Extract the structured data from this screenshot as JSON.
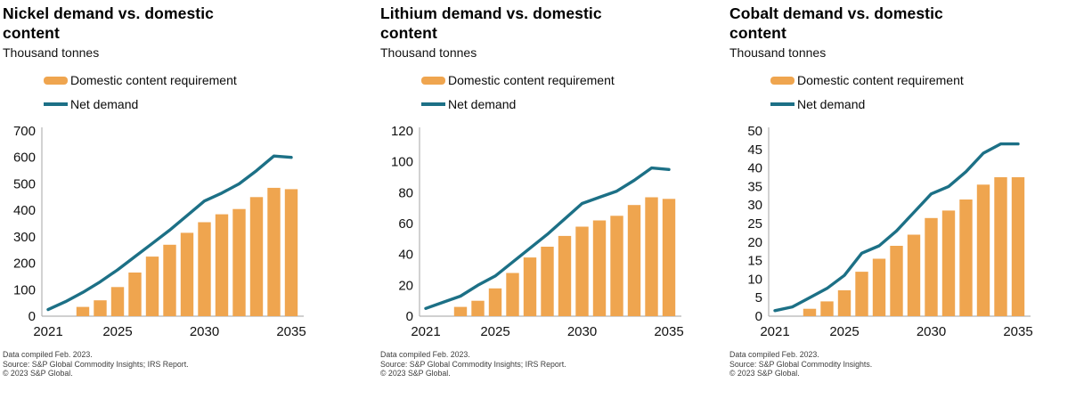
{
  "page": {
    "background": "#ffffff",
    "axis_color": "#b3b3b3",
    "bar_color": "#EFA54F",
    "line_color": "#1C7086"
  },
  "chart_data": [
    {
      "type": "bar+line",
      "title": "Nickel demand vs. domestic content",
      "subtitle": "Thousand tonnes",
      "x_range": [
        2021,
        2035
      ],
      "xticks": [
        2021,
        2025,
        2030,
        2035
      ],
      "ylim": [
        0,
        700
      ],
      "ytick_step": 100,
      "grid": false,
      "legend_position": "top-left",
      "series": [
        {
          "name": "Domestic content requirement",
          "type": "bar",
          "color": "#EFA54F",
          "x_start": 2023,
          "values": [
            35,
            60,
            110,
            165,
            225,
            270,
            315,
            355,
            385,
            405,
            450,
            485,
            480
          ]
        },
        {
          "name": "Net demand",
          "type": "line",
          "color": "#1C7086",
          "x_start": 2021,
          "values": [
            25,
            55,
            90,
            130,
            175,
            225,
            275,
            325,
            380,
            435,
            465,
            500,
            550,
            605,
            600
          ]
        }
      ],
      "footer": [
        "Data compiled Feb. 2023.",
        "Source: S&P Global Commodity Insights; IRS Report.",
        "© 2023 S&P Global."
      ]
    },
    {
      "type": "bar+line",
      "title": "Lithium demand vs. domestic content",
      "subtitle": "Thousand tonnes",
      "x_range": [
        2021,
        2035
      ],
      "xticks": [
        2021,
        2025,
        2030,
        2035
      ],
      "ylim": [
        0,
        120
      ],
      "ytick_step": 20,
      "grid": false,
      "legend_position": "top-left",
      "series": [
        {
          "name": "Domestic content requirement",
          "type": "bar",
          "color": "#EFA54F",
          "x_start": 2023,
          "values": [
            6,
            10,
            18,
            28,
            38,
            45,
            52,
            58,
            62,
            65,
            72,
            77,
            76
          ]
        },
        {
          "name": "Net demand",
          "type": "line",
          "color": "#1C7086",
          "x_start": 2021,
          "values": [
            5,
            9,
            13,
            20,
            26,
            35,
            44,
            53,
            63,
            73,
            77,
            81,
            88,
            96,
            95
          ]
        }
      ],
      "footer": [
        "Data compiled Feb. 2023.",
        "Source: S&P Global Commodity Insights; IRS Report.",
        "© 2023 S&P Global."
      ]
    },
    {
      "type": "bar+line",
      "title": "Cobalt demand vs. domestic content",
      "subtitle": "Thousand tonnes",
      "x_range": [
        2021,
        2035
      ],
      "xticks": [
        2021,
        2025,
        2030,
        2035
      ],
      "ylim": [
        0,
        50
      ],
      "ytick_step": 5,
      "grid": false,
      "legend_position": "top-left",
      "series": [
        {
          "name": "Domestic content requirement",
          "type": "bar",
          "color": "#EFA54F",
          "x_start": 2023,
          "values": [
            2,
            4,
            7,
            12,
            15.5,
            19,
            22,
            26.5,
            28.5,
            31.5,
            35.5,
            37.5,
            37.5
          ]
        },
        {
          "name": "Net demand",
          "type": "line",
          "color": "#1C7086",
          "x_start": 2021,
          "values": [
            1.5,
            2.5,
            5,
            7.5,
            11,
            17,
            19,
            23,
            28,
            33,
            35,
            39,
            44,
            46.5,
            46.5
          ]
        }
      ],
      "footer": [
        "Data compiled Feb. 2023.",
        "Source: S&P Global Commodity Insights.",
        "© 2023 S&P Global."
      ]
    }
  ]
}
